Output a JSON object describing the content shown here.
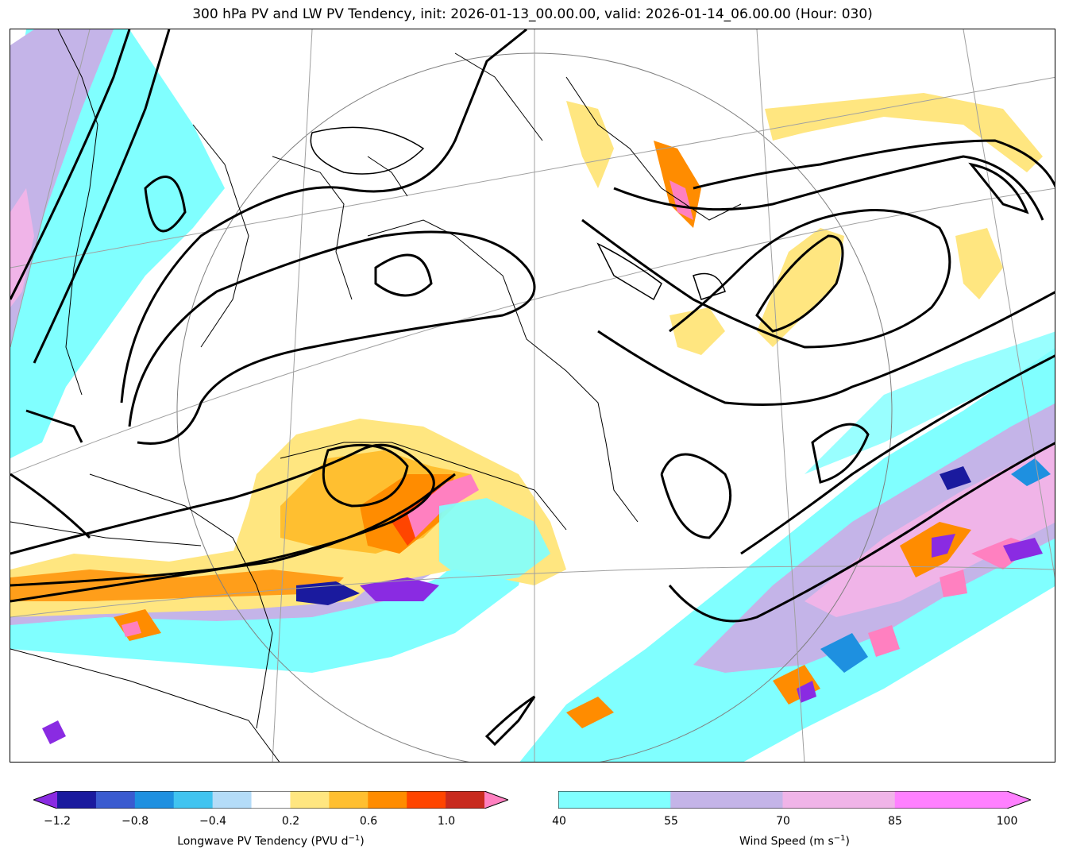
{
  "title": "300 hPa PV and LW PV Tendency, init: 2026-01-13_00.00.00, valid: 2026-01-14_06.00.00 (Hour: 030)",
  "pv_colorbar": {
    "label_main": "Longwave PV Tendency (PVU d",
    "label_sup": "−1",
    "label_end": ")",
    "ticks": [
      "−1.2",
      "−0.8",
      "−0.4",
      "0.2",
      "0.6",
      "1.0"
    ],
    "bounds": [
      -1.2,
      -1.0,
      -0.8,
      -0.6,
      -0.4,
      -0.2,
      0.2,
      0.4,
      0.6,
      0.8,
      1.0,
      1.2
    ],
    "colors": [
      "#1a1a9e",
      "#3a5bd0",
      "#1e90e0",
      "#40c4f0",
      "#b4dcf8",
      "#ffffff",
      "#ffe680",
      "#ffbf30",
      "#ff8c00",
      "#ff4500",
      "#c82a1e"
    ],
    "under_color": "#8a2be2",
    "over_color": "#ff80c0"
  },
  "ws_colorbar": {
    "label_main": "Wind Speed (m s",
    "label_sup": "−1",
    "label_end": ")",
    "ticks": [
      "40",
      "55",
      "70",
      "85",
      "100"
    ],
    "colors": [
      "#80ffff",
      "#c4b4e8",
      "#f0b4e8",
      "#ff80ff"
    ],
    "over_color": "#ff80ff"
  },
  "map_colors": {
    "contour": "#000000",
    "coast": "#000000",
    "grid": "#a0a0a0",
    "ws40": "#80ffff",
    "ws55": "#c4b4e8",
    "ws70": "#f0b4e8",
    "ws85": "#ff80ff",
    "pv_pos1": "#ffe680",
    "pv_pos2": "#ffbf30",
    "pv_pos3": "#ff8c00",
    "pv_pos4": "#ff4500",
    "pv_over": "#ff80c0",
    "pv_neg1": "#b4dcf8",
    "pv_neg3": "#1e90e0",
    "pv_neg5": "#1a1a9e",
    "pv_under": "#8a2be2"
  }
}
